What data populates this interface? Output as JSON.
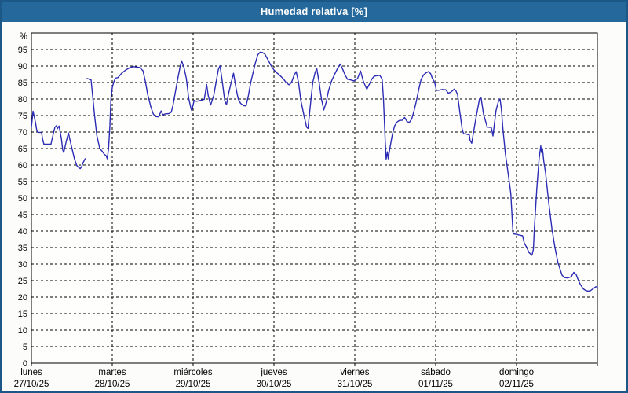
{
  "window": {
    "title": "Humedad relativa [%]"
  },
  "colors": {
    "frame": "#1b5787",
    "titlebar": "#24689c",
    "title_text": "#ffffff",
    "page_bg": "#fcfdfa",
    "plot_bg": "#fefefc",
    "grid": "#000000",
    "axis": "#000000",
    "label": "#000000",
    "line": "#2b2bb5"
  },
  "chart_data": {
    "type": "line",
    "title": "Humedad relativa [%]",
    "ylabel": "%",
    "xlabel": "",
    "ylim": [
      0,
      100
    ],
    "yticks": [
      0,
      5,
      10,
      15,
      20,
      25,
      30,
      35,
      40,
      45,
      50,
      55,
      60,
      65,
      70,
      75,
      80,
      85,
      90,
      95
    ],
    "grid": true,
    "legend_position": "none",
    "x_total_hours": 168,
    "days": [
      {
        "label": "lunes",
        "date": "27/10/25"
      },
      {
        "label": "martes",
        "date": "28/10/25"
      },
      {
        "label": "miércoles",
        "date": "29/10/25"
      },
      {
        "label": "jueves",
        "date": "30/10/25"
      },
      {
        "label": "viernes",
        "date": "31/10/25"
      },
      {
        "label": "sábado",
        "date": "01/11/25"
      },
      {
        "label": "domingo",
        "date": "02/11/25"
      }
    ],
    "series": [
      {
        "name": "Humedad relativa",
        "unit": "%",
        "color": "#2b2bb5",
        "segments": [
          [
            [
              0,
              71.5
            ],
            [
              0.5,
              76.3
            ],
            [
              1.2,
              73.0
            ],
            [
              1.6,
              70.4
            ],
            [
              1.9,
              69.9
            ],
            [
              3.0,
              69.9
            ],
            [
              3.3,
              67.9
            ],
            [
              3.7,
              66.3
            ],
            [
              5.8,
              66.3
            ],
            [
              6.5,
              69.5
            ],
            [
              7.0,
              71.5
            ],
            [
              7.5,
              72.0
            ],
            [
              7.7,
              71.0
            ],
            [
              8.2,
              71.8
            ],
            [
              8.9,
              68.0
            ],
            [
              9.3,
              64.6
            ],
            [
              9.6,
              63.8
            ],
            [
              10.3,
              67.0
            ],
            [
              11.0,
              69.7
            ],
            [
              11.7,
              66.5
            ],
            [
              12.4,
              63.5
            ],
            [
              12.8,
              61.8
            ],
            [
              13.5,
              59.8
            ],
            [
              14.0,
              59.3
            ],
            [
              14.5,
              58.9
            ],
            [
              14.9,
              59.5
            ],
            [
              15.4,
              60.8
            ],
            [
              15.9,
              61.8
            ],
            [
              16.1,
              62.0
            ]
          ],
          [
            [
              16.5,
              86.2
            ],
            [
              17.0,
              86.1
            ],
            [
              17.7,
              85.8
            ],
            [
              18.7,
              75.4
            ],
            [
              19.4,
              69.0
            ],
            [
              20.3,
              65.0
            ],
            [
              21.0,
              64.2
            ],
            [
              21.7,
              63.2
            ],
            [
              22.2,
              62.8
            ],
            [
              22.5,
              61.9
            ],
            [
              22.9,
              65.0
            ],
            [
              23.3,
              72.0
            ],
            [
              23.6,
              80.0
            ],
            [
              24.0,
              83.4
            ],
            [
              24.4,
              85.0
            ],
            [
              24.9,
              86.3
            ],
            [
              25.7,
              86.5
            ],
            [
              26.8,
              87.8
            ],
            [
              28.0,
              88.8
            ],
            [
              29.2,
              89.5
            ],
            [
              30.3,
              89.8
            ],
            [
              32.0,
              89.6
            ],
            [
              32.7,
              89.0
            ],
            [
              33.1,
              88.6
            ],
            [
              33.8,
              85.4
            ],
            [
              34.5,
              81.4
            ],
            [
              35.5,
              77.4
            ],
            [
              36.2,
              75.4
            ],
            [
              36.9,
              74.7
            ],
            [
              37.8,
              74.6
            ],
            [
              38.5,
              76.4
            ],
            [
              39.0,
              75.2
            ],
            [
              39.7,
              75.5
            ],
            [
              40.8,
              75.6
            ],
            [
              41.5,
              76.0
            ],
            [
              42.0,
              78.0
            ],
            [
              42.7,
              82.0
            ],
            [
              43.6,
              87.0
            ],
            [
              44.3,
              90.5
            ],
            [
              44.6,
              91.6
            ],
            [
              45.3,
              89.5
            ],
            [
              46.0,
              86.2
            ],
            [
              46.7,
              80.2
            ],
            [
              47.4,
              77.0
            ],
            [
              47.6,
              76.5
            ],
            [
              48.3,
              79.6
            ],
            [
              49.0,
              79.3
            ],
            [
              50.2,
              79.6
            ],
            [
              51.3,
              79.9
            ],
            [
              52.0,
              84.4
            ],
            [
              52.5,
              81.0
            ],
            [
              53.2,
              78.2
            ],
            [
              54.1,
              81.0
            ],
            [
              54.8,
              85.0
            ],
            [
              55.5,
              89.0
            ],
            [
              56.0,
              90.1
            ],
            [
              56.7,
              85.0
            ],
            [
              57.4,
              79.5
            ],
            [
              57.9,
              78.3
            ],
            [
              58.6,
              82.0
            ],
            [
              59.3,
              85.0
            ],
            [
              60.0,
              87.8
            ],
            [
              60.7,
              83.5
            ],
            [
              61.4,
              80.0
            ],
            [
              62.1,
              78.7
            ],
            [
              63.0,
              78.0
            ],
            [
              63.7,
              77.9
            ],
            [
              64.4,
              81.0
            ],
            [
              65.1,
              85.0
            ],
            [
              65.8,
              88.0
            ],
            [
              66.5,
              91.0
            ],
            [
              67.2,
              93.4
            ],
            [
              67.9,
              94.2
            ],
            [
              68.6,
              94.1
            ],
            [
              69.3,
              93.6
            ],
            [
              70.0,
              92.3
            ],
            [
              71.2,
              90.0
            ],
            [
              72.0,
              88.8
            ],
            [
              73.0,
              87.8
            ],
            [
              74.0,
              86.9
            ],
            [
              74.9,
              86.0
            ],
            [
              75.6,
              85.0
            ],
            [
              76.5,
              84.3
            ],
            [
              77.2,
              85.0
            ],
            [
              77.9,
              87.0
            ],
            [
              78.6,
              88.3
            ],
            [
              79.3,
              85.0
            ],
            [
              80.0,
              79.5
            ],
            [
              81.0,
              74.6
            ],
            [
              81.7,
              71.5
            ],
            [
              82.1,
              71.1
            ],
            [
              82.8,
              77.9
            ],
            [
              83.5,
              85.0
            ],
            [
              84.2,
              88.0
            ],
            [
              84.7,
              89.3
            ],
            [
              85.4,
              85.0
            ],
            [
              86.1,
              80.0
            ],
            [
              86.8,
              76.7
            ],
            [
              87.5,
              79.0
            ],
            [
              88.2,
              82.5
            ],
            [
              89.1,
              85.5
            ],
            [
              90.0,
              87.5
            ],
            [
              91.0,
              89.5
            ],
            [
              91.7,
              90.6
            ],
            [
              92.4,
              89.0
            ],
            [
              93.1,
              87.3
            ],
            [
              93.8,
              86.0
            ],
            [
              94.7,
              85.8
            ],
            [
              95.7,
              85.5
            ],
            [
              96.8,
              86.2
            ],
            [
              97.7,
              88.5
            ],
            [
              98.5,
              85.5
            ],
            [
              99.2,
              83.8
            ],
            [
              99.6,
              83.0
            ],
            [
              100.3,
              84.5
            ],
            [
              101.0,
              86.0
            ],
            [
              101.7,
              86.9
            ],
            [
              102.7,
              87.1
            ],
            [
              103.4,
              87.2
            ],
            [
              104.1,
              86.0
            ],
            [
              104.5,
              80.0
            ],
            [
              105.0,
              68.0
            ],
            [
              105.3,
              61.8
            ],
            [
              105.7,
              64.0
            ],
            [
              105.9,
              61.9
            ],
            [
              106.4,
              65.0
            ],
            [
              107.1,
              69.0
            ],
            [
              107.8,
              71.8
            ],
            [
              108.5,
              73.0
            ],
            [
              109.2,
              73.5
            ],
            [
              110.1,
              73.6
            ],
            [
              110.8,
              74.4
            ],
            [
              111.5,
              73.2
            ],
            [
              112.2,
              72.9
            ],
            [
              112.9,
              74.0
            ],
            [
              113.6,
              76.5
            ],
            [
              114.3,
              79.5
            ],
            [
              115.0,
              83.0
            ],
            [
              115.7,
              86.0
            ],
            [
              116.4,
              87.3
            ],
            [
              117.1,
              87.9
            ],
            [
              117.8,
              88.3
            ],
            [
              118.5,
              87.7
            ],
            [
              119.0,
              86.3
            ],
            [
              119.7,
              85.1
            ],
            [
              120.2,
              82.6
            ],
            [
              121.0,
              82.7
            ],
            [
              122.0,
              82.9
            ],
            [
              123.0,
              82.8
            ],
            [
              123.7,
              81.8
            ],
            [
              124.4,
              82.0
            ],
            [
              125.5,
              83.0
            ],
            [
              126.0,
              82.5
            ],
            [
              126.5,
              81.3
            ],
            [
              127.2,
              75.8
            ],
            [
              127.9,
              70.7
            ],
            [
              128.3,
              69.5
            ],
            [
              129.0,
              69.4
            ],
            [
              130.0,
              69.1
            ],
            [
              130.2,
              67.5
            ],
            [
              130.7,
              66.6
            ],
            [
              131.8,
              73.3
            ],
            [
              133.0,
              80.0
            ],
            [
              133.5,
              80.3
            ],
            [
              134.2,
              75.5
            ],
            [
              135.3,
              71.5
            ],
            [
              136.5,
              71.4
            ],
            [
              137.0,
              68.8
            ],
            [
              137.9,
              76.4
            ],
            [
              138.6,
              79.2
            ],
            [
              139.1,
              80.0
            ],
            [
              139.5,
              77.0
            ],
            [
              140.0,
              70.6
            ],
            [
              140.7,
              63.4
            ],
            [
              141.6,
              56.8
            ],
            [
              142.3,
              51.4
            ],
            [
              142.8,
              42.0
            ],
            [
              143.0,
              39.2
            ],
            [
              144.0,
              39.0
            ],
            [
              145.3,
              38.7
            ],
            [
              145.8,
              38.6
            ],
            [
              146.3,
              36.3
            ],
            [
              147.0,
              35.1
            ],
            [
              147.7,
              33.5
            ],
            [
              148.6,
              32.7
            ],
            [
              149.0,
              34.5
            ],
            [
              149.3,
              40.7
            ],
            [
              150.0,
              52.7
            ],
            [
              150.7,
              62.0
            ],
            [
              151.2,
              65.8
            ],
            [
              151.4,
              63.8
            ],
            [
              151.7,
              65.0
            ],
            [
              152.1,
              61.0
            ],
            [
              152.6,
              57.8
            ],
            [
              153.5,
              49.1
            ],
            [
              154.5,
              40.7
            ],
            [
              155.4,
              35.1
            ],
            [
              156.3,
              30.4
            ],
            [
              157.5,
              26.7
            ],
            [
              158.2,
              25.9
            ],
            [
              159.1,
              25.8
            ],
            [
              159.8,
              26.0
            ],
            [
              160.3,
              26.3
            ],
            [
              161.0,
              27.5
            ],
            [
              161.7,
              26.8
            ],
            [
              162.2,
              25.5
            ],
            [
              162.9,
              23.9
            ],
            [
              163.8,
              22.5
            ],
            [
              164.5,
              22.0
            ],
            [
              165.2,
              21.8
            ],
            [
              165.9,
              21.9
            ],
            [
              166.8,
              22.6
            ],
            [
              167.5,
              23.1
            ],
            [
              168.0,
              23.2
            ]
          ]
        ]
      }
    ]
  }
}
